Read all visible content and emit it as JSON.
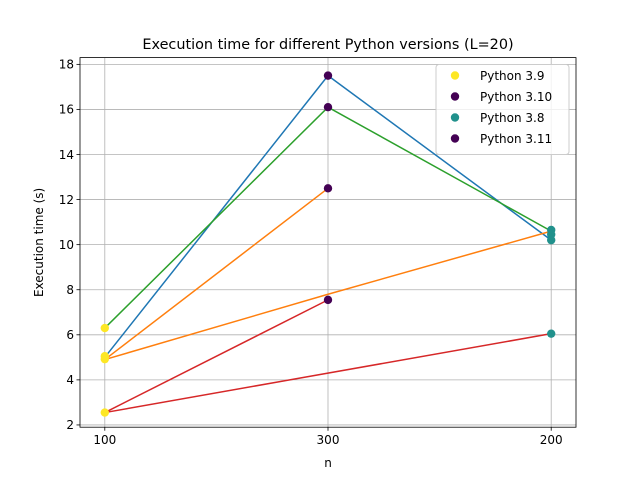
{
  "chart_data": {
    "type": "scatter",
    "title": "Execution time for different Python versions (L=20)",
    "xlabel": "n",
    "ylabel": "Execution time (s)",
    "x_categories": [
      "100",
      "300",
      "200"
    ],
    "ylim": [
      1.9,
      18.3
    ],
    "yticks": [
      2,
      4,
      6,
      8,
      10,
      12,
      14,
      16,
      18
    ],
    "grid": true,
    "legend_position": "top-right",
    "legend": [
      {
        "label": "Python 3.9",
        "color": "#fde725"
      },
      {
        "label": "Python 3.10",
        "color": "#440154"
      },
      {
        "label": "Python 3.8",
        "color": "#21918c"
      },
      {
        "label": "Python 3.11",
        "color": "#440154"
      }
    ],
    "lines": [
      {
        "color": "#1f77b4",
        "points": [
          [
            "100",
            5.0
          ],
          [
            "300",
            17.5
          ],
          [
            "200",
            10.2
          ]
        ]
      },
      {
        "color": "#ff7f0e",
        "points": [
          [
            "100",
            4.9
          ],
          [
            "300",
            12.5
          ]
        ]
      },
      {
        "color": "#ff7f0e",
        "points": [
          [
            "100",
            4.9
          ],
          [
            "300",
            7.8
          ],
          [
            "200",
            10.6
          ]
        ]
      },
      {
        "color": "#2ca02c",
        "points": [
          [
            "100",
            6.3
          ],
          [
            "300",
            16.1
          ],
          [
            "200",
            10.6
          ]
        ]
      },
      {
        "color": "#d62728",
        "points": [
          [
            "100",
            2.55
          ],
          [
            "300",
            7.55
          ]
        ]
      },
      {
        "color": "#d62728",
        "points": [
          [
            "100",
            2.55
          ],
          [
            "200",
            6.05
          ]
        ]
      }
    ],
    "points": [
      {
        "x": "100",
        "y": 5.05,
        "color": "#fde725"
      },
      {
        "x": "100",
        "y": 4.92,
        "color": "#fde725"
      },
      {
        "x": "100",
        "y": 6.3,
        "color": "#fde725"
      },
      {
        "x": "100",
        "y": 2.55,
        "color": "#fde725"
      },
      {
        "x": "300",
        "y": 17.5,
        "color": "#440154"
      },
      {
        "x": "300",
        "y": 16.1,
        "color": "#440154"
      },
      {
        "x": "300",
        "y": 12.5,
        "color": "#440154"
      },
      {
        "x": "300",
        "y": 7.55,
        "color": "#440154"
      },
      {
        "x": "200",
        "y": 10.65,
        "color": "#21918c"
      },
      {
        "x": "200",
        "y": 10.45,
        "color": "#21918c"
      },
      {
        "x": "200",
        "y": 10.2,
        "color": "#21918c"
      },
      {
        "x": "200",
        "y": 6.05,
        "color": "#21918c"
      }
    ]
  }
}
